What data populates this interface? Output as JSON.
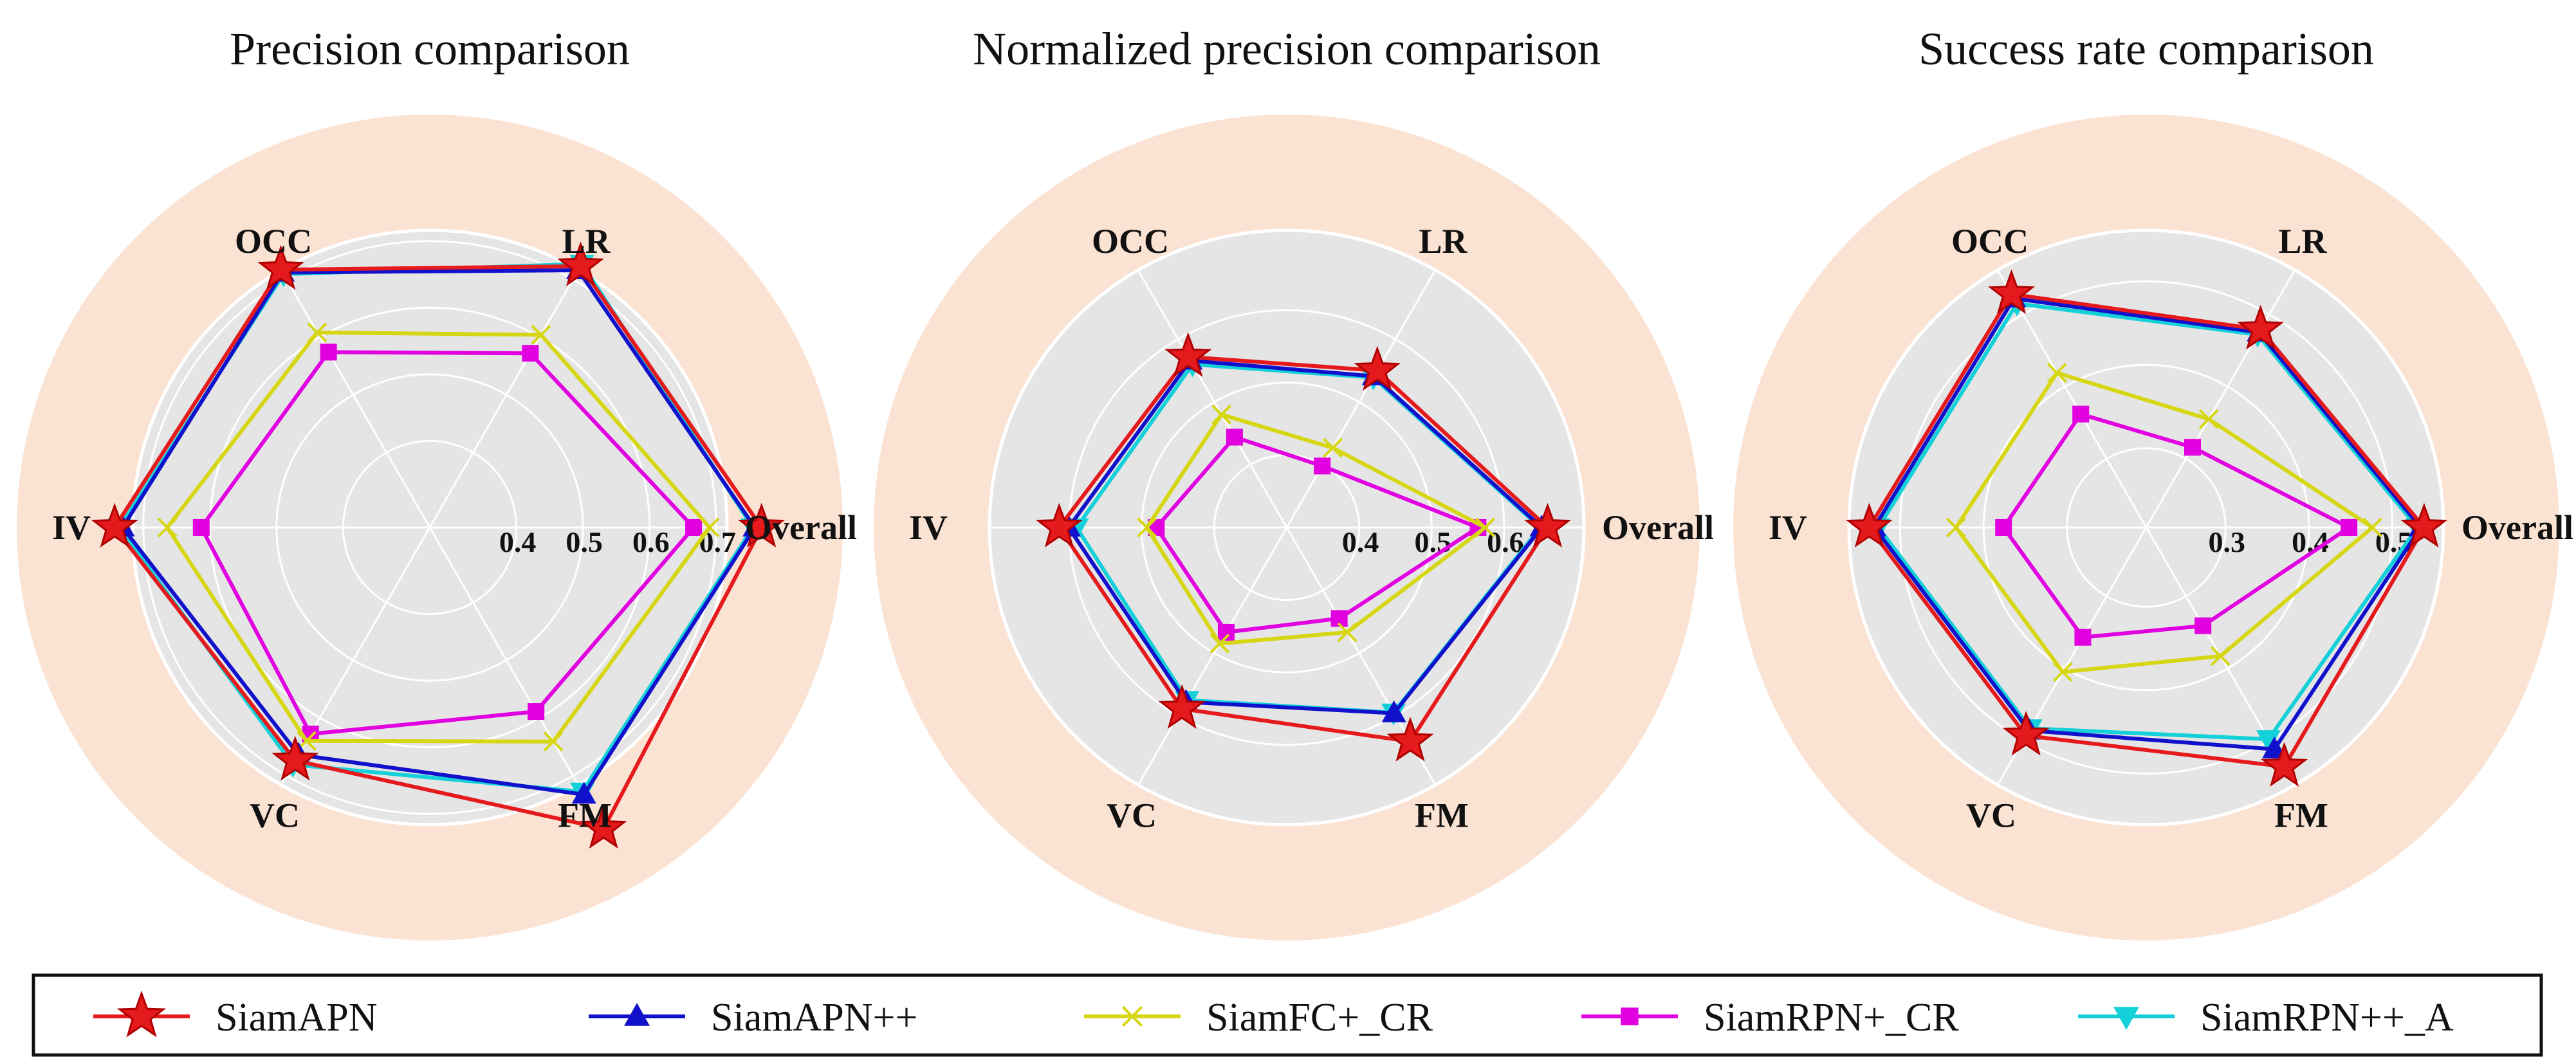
{
  "chart_data": [
    {
      "type": "radar",
      "title": "Precision comparison",
      "axes": [
        "Overall",
        "LR",
        "OCC",
        "IV",
        "VC",
        "FM"
      ],
      "rticks": [
        0.4,
        0.5,
        0.6,
        0.7
      ],
      "rtick_labels": [
        "0.4",
        "0.5",
        "0.6",
        "0.7"
      ],
      "rlim": [
        0.27,
        0.89
      ],
      "series": [
        {
          "name": "SiamAPN",
          "values": [
            0.768,
            0.723,
            0.717,
            0.743,
            0.674,
            0.792
          ]
        },
        {
          "name": "SiamAPN++",
          "values": [
            0.758,
            0.716,
            0.712,
            0.731,
            0.664,
            0.733
          ]
        },
        {
          "name": "SiamFC+_CR",
          "values": [
            0.69,
            0.604,
            0.608,
            0.664,
            0.64,
            0.641
          ]
        },
        {
          "name": "SiamRPN+_CR",
          "values": [
            0.666,
            0.572,
            0.574,
            0.613,
            0.628,
            0.589
          ]
        },
        {
          "name": "SiamRPN++_A",
          "values": [
            0.755,
            0.727,
            0.709,
            0.736,
            0.681,
            0.728
          ]
        }
      ]
    },
    {
      "type": "radar",
      "title": "Normalized precision comparison",
      "axes": [
        "Overall",
        "LR",
        "OCC",
        "IV",
        "VC",
        "FM"
      ],
      "rticks": [
        0.4,
        0.5,
        0.6
      ],
      "rtick_labels": [
        "0.4",
        "0.5",
        "0.6"
      ],
      "rlim": [
        0.3,
        0.87
      ],
      "series": [
        {
          "name": "SiamAPN",
          "values": [
            0.66,
            0.55,
            0.572,
            0.614,
            0.589,
            0.641
          ]
        },
        {
          "name": "SiamAPN++",
          "values": [
            0.652,
            0.541,
            0.566,
            0.601,
            0.578,
            0.596
          ]
        },
        {
          "name": "SiamFC+_CR",
          "values": [
            0.574,
            0.427,
            0.48,
            0.493,
            0.485,
            0.467
          ]
        },
        {
          "name": "SiamRPN+_CR",
          "values": [
            0.564,
            0.398,
            0.444,
            0.48,
            0.467,
            0.445
          ]
        },
        {
          "name": "SiamRPN++_A",
          "values": [
            0.65,
            0.539,
            0.56,
            0.59,
            0.575,
            0.595
          ]
        }
      ]
    },
    {
      "type": "radar",
      "title": "Success rate comparison",
      "axes": [
        "Overall",
        "LR",
        "OCC",
        "IV",
        "VC",
        "FM"
      ],
      "rticks": [
        0.3,
        0.4,
        0.5
      ],
      "rtick_labels": [
        "0.3",
        "0.4",
        "0.5"
      ],
      "rlim": [
        0.205,
        0.7
      ],
      "series": [
        {
          "name": "SiamAPN",
          "values": [
            0.538,
            0.479,
            0.528,
            0.537,
            0.493,
            0.536
          ]
        },
        {
          "name": "SiamAPN++",
          "values": [
            0.534,
            0.475,
            0.522,
            0.531,
            0.486,
            0.512
          ]
        },
        {
          "name": "SiamFC+_CR",
          "values": [
            0.476,
            0.355,
            0.419,
            0.433,
            0.405,
            0.383
          ]
        },
        {
          "name": "SiamRPN+_CR",
          "values": [
            0.448,
            0.316,
            0.362,
            0.376,
            0.357,
            0.341
          ]
        },
        {
          "name": "SiamRPN++_A",
          "values": [
            0.53,
            0.472,
            0.515,
            0.526,
            0.483,
            0.498
          ]
        }
      ]
    }
  ],
  "legend": {
    "placement": "bottom",
    "entries": [
      {
        "name": "SiamAPN",
        "color": "#e41a1c",
        "marker": "star"
      },
      {
        "name": "SiamAPN++",
        "color": "#1111cc",
        "marker": "triangle-up"
      },
      {
        "name": "SiamFC+_CR",
        "color": "#d6d614",
        "marker": "x"
      },
      {
        "name": "SiamRPN+_CR",
        "color": "#e000e0",
        "marker": "square"
      },
      {
        "name": "SiamRPN++_A",
        "color": "#14d0d8",
        "marker": "triangle-down"
      }
    ]
  },
  "colors": {
    "outer_ring": "#fbe3d3",
    "inner_disc": "#e5e5e5",
    "grid": "#ffffff",
    "star_marker_edge": "#b00000"
  }
}
